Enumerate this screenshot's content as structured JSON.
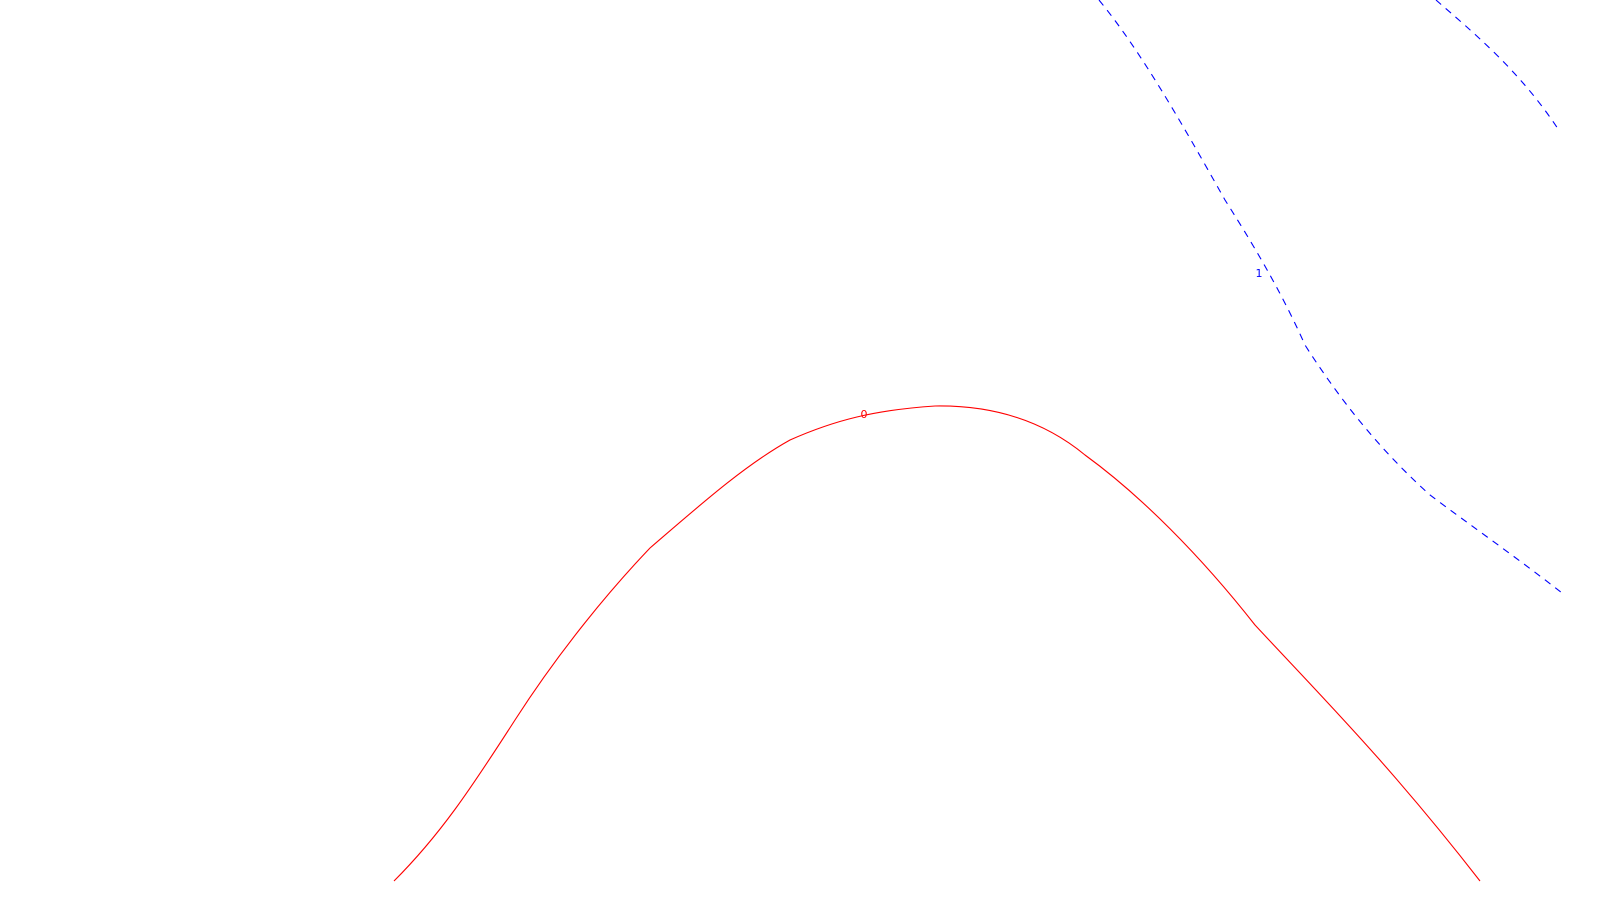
{
  "chart_data": {
    "type": "line",
    "grid": false,
    "title": "",
    "xlabel": "",
    "ylabel": "",
    "series": [
      {
        "label": "0",
        "color": "#ff0000",
        "dash": "solid"
      },
      {
        "label": "1",
        "color": "#0000ff",
        "dash": "dashed"
      }
    ]
  }
}
